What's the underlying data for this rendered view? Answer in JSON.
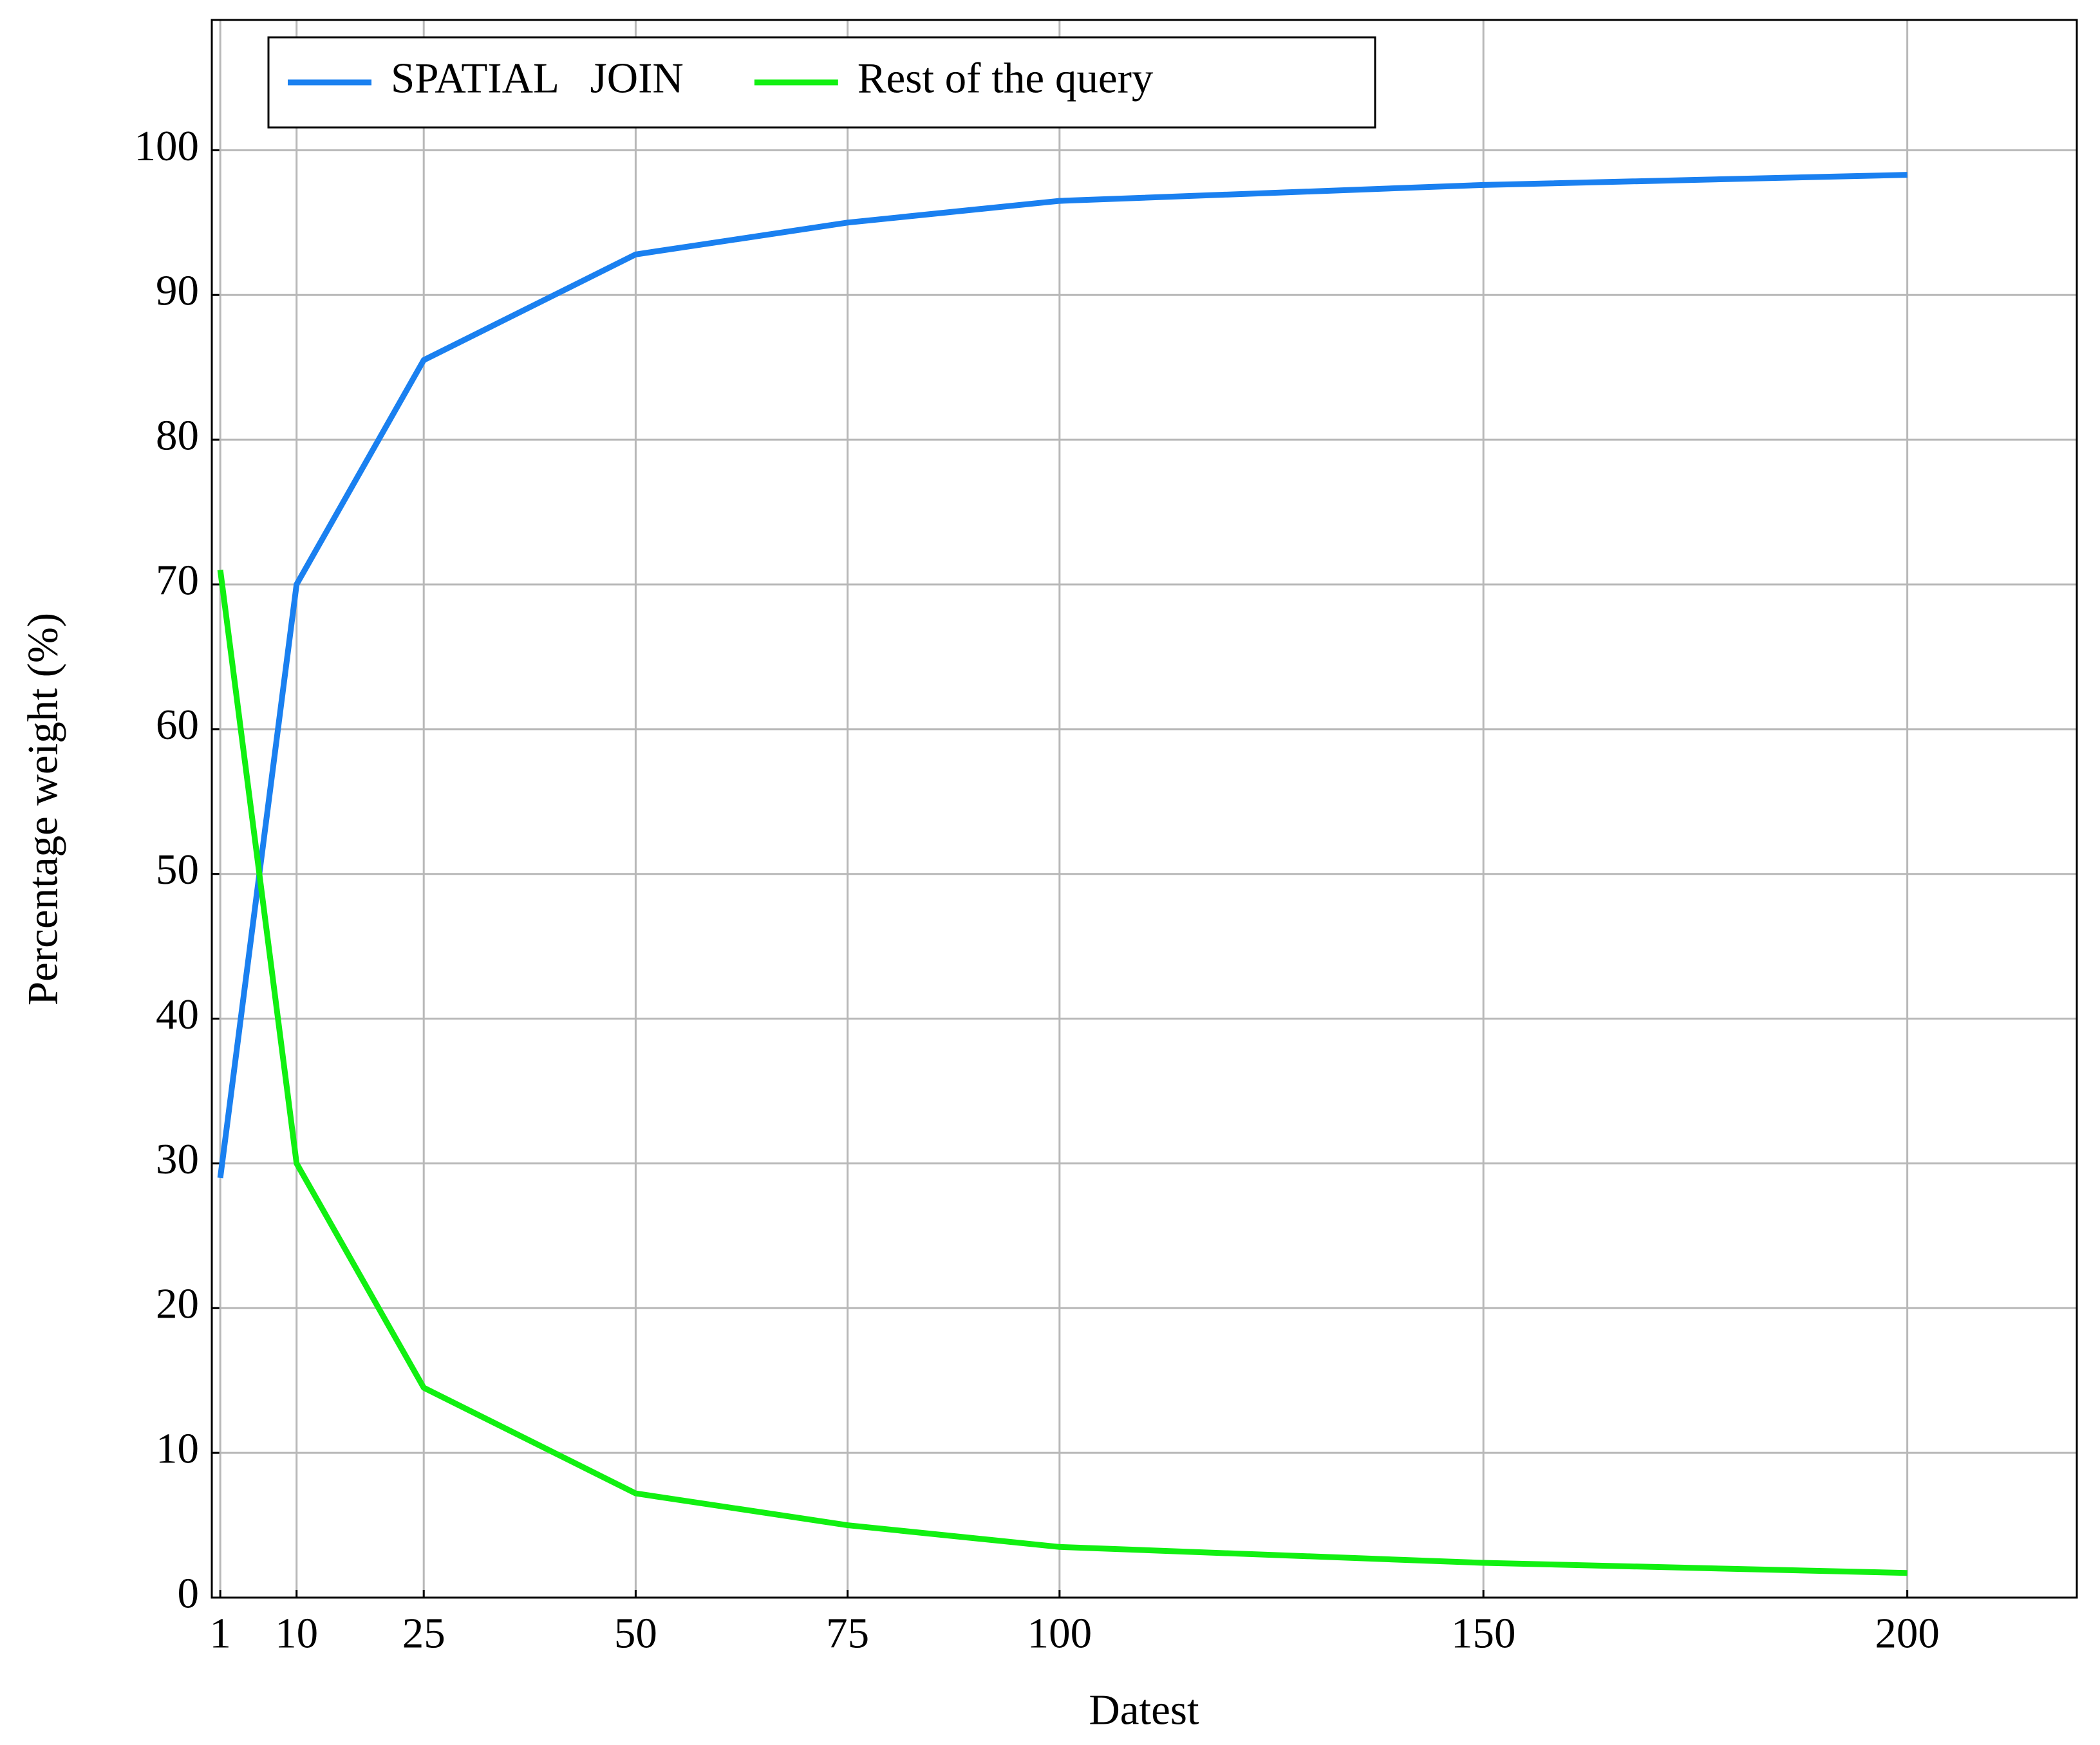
{
  "chart_data": {
    "type": "line",
    "x_label": "Datest",
    "y_label": "Percentage weight (%)",
    "x": [
      1,
      10,
      25,
      50,
      75,
      100,
      150,
      200
    ],
    "series": [
      {
        "name": "SPATIAL   JOIN",
        "color": "#1a80f0",
        "values": [
          29,
          70,
          85.5,
          92.8,
          95,
          96.5,
          97.6,
          98.3
        ]
      },
      {
        "name": "Rest of the query",
        "color": "#11f011",
        "values": [
          71,
          30,
          14.5,
          7.2,
          5,
          3.5,
          2.4,
          1.7
        ]
      }
    ],
    "xlim": [
      0,
      220
    ],
    "ylim": [
      0,
      109
    ],
    "xticks": [
      1,
      10,
      25,
      50,
      75,
      100,
      150,
      200
    ],
    "yticks": [
      0,
      10,
      20,
      30,
      40,
      50,
      60,
      70,
      80,
      90,
      100
    ],
    "grid": true,
    "legend": "upper left"
  }
}
